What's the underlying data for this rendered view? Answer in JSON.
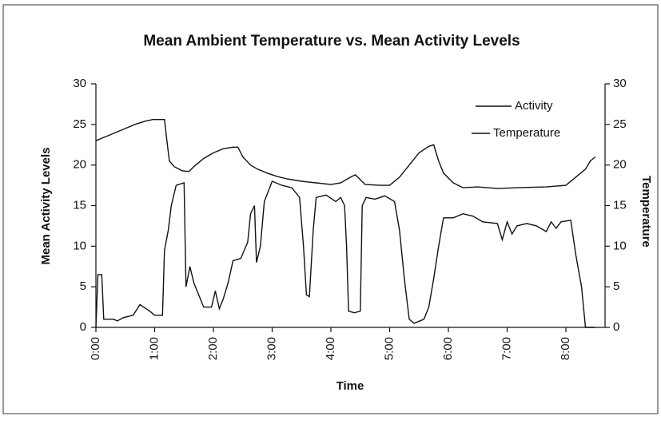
{
  "chart_data": {
    "type": "line",
    "title": "Mean  Ambient Temperature vs. Mean Activity Levels",
    "xlabel": "Time",
    "ylabel": "Mean Activity Levels",
    "y2label": "Temperature",
    "xlim": [
      0,
      520
    ],
    "xticks": [
      {
        "value": 0,
        "label": "0:00"
      },
      {
        "value": 60,
        "label": "1:00"
      },
      {
        "value": 120,
        "label": "2:00"
      },
      {
        "value": 180,
        "label": "3:00"
      },
      {
        "value": 240,
        "label": "4:00"
      },
      {
        "value": 300,
        "label": "5:00"
      },
      {
        "value": 360,
        "label": "6:00"
      },
      {
        "value": 420,
        "label": "7:00"
      },
      {
        "value": 480,
        "label": "8:00"
      }
    ],
    "ylim": [
      0,
      30
    ],
    "yticks": [
      0,
      5,
      10,
      15,
      20,
      25,
      30
    ],
    "y2lim": [
      0,
      30
    ],
    "y2ticks": [
      0,
      5,
      10,
      15,
      20,
      25,
      30
    ],
    "legend": "upper right",
    "series": [
      {
        "name": "Activity",
        "color": "#111111",
        "axis": "y",
        "x": [
          0,
          2,
          6,
          8,
          18,
          22,
          28,
          38,
          45,
          55,
          60,
          68,
          70,
          74,
          77,
          82,
          90,
          92,
          96,
          100,
          105,
          110,
          118,
          122,
          126,
          130,
          135,
          140,
          148,
          155,
          158,
          162,
          164,
          168,
          172,
          180,
          190,
          200,
          208,
          212,
          215,
          218,
          222,
          225,
          235,
          245,
          250,
          254,
          256,
          258,
          264,
          270,
          272,
          276,
          285,
          295,
          305,
          310,
          315,
          320,
          325,
          335,
          340,
          345,
          350,
          355,
          365,
          375,
          385,
          395,
          410,
          415,
          420,
          425,
          430,
          440,
          450,
          460,
          465,
          470,
          475,
          485,
          490,
          496,
          500,
          510
        ],
        "values": [
          0,
          6.5,
          6.5,
          1,
          1,
          0.8,
          1.2,
          1.5,
          2.8,
          2,
          1.5,
          1.5,
          9.5,
          12,
          15,
          17.5,
          17.8,
          5,
          7.5,
          5.5,
          4,
          2.5,
          2.5,
          4.5,
          2.3,
          3.5,
          5.5,
          8.2,
          8.5,
          10.5,
          14,
          15,
          8,
          10,
          15.5,
          18,
          17.5,
          17.2,
          16,
          10,
          4,
          3.8,
          12,
          16,
          16.3,
          15.5,
          16,
          15,
          10,
          2,
          1.8,
          2,
          15,
          16,
          15.8,
          16.2,
          15.5,
          12,
          6,
          1,
          0.5,
          1,
          2.5,
          6,
          10,
          13.5,
          13.5,
          14,
          13.7,
          13,
          12.8,
          10.8,
          13,
          11.5,
          12.5,
          12.8,
          12.5,
          11.8,
          13,
          12.2,
          13,
          13.2,
          9,
          5,
          0,
          0
        ]
      },
      {
        "name": "Temperature",
        "color": "#111111",
        "axis": "y2",
        "x": [
          0,
          10,
          20,
          30,
          40,
          50,
          58,
          70,
          72,
          75,
          80,
          88,
          95,
          100,
          110,
          120,
          130,
          140,
          145,
          150,
          158,
          165,
          175,
          185,
          195,
          210,
          225,
          240,
          250,
          260,
          265,
          270,
          275,
          290,
          300,
          310,
          320,
          330,
          340,
          345,
          350,
          355,
          365,
          375,
          390,
          410,
          430,
          460,
          480,
          490,
          500,
          505,
          510
        ],
        "values": [
          23,
          23.5,
          24,
          24.5,
          25,
          25.4,
          25.6,
          25.6,
          23.5,
          20.5,
          19.8,
          19.3,
          19.2,
          19.8,
          20.8,
          21.5,
          22,
          22.2,
          22.2,
          21,
          20,
          19.5,
          19,
          18.6,
          18.3,
          18,
          17.8,
          17.6,
          17.8,
          18.5,
          18.8,
          18.2,
          17.6,
          17.5,
          17.5,
          18.5,
          20,
          21.5,
          22.3,
          22.5,
          20.5,
          19,
          17.8,
          17.2,
          17.3,
          17.1,
          17.2,
          17.3,
          17.5,
          18.5,
          19.5,
          20.5,
          21
        ]
      }
    ]
  }
}
